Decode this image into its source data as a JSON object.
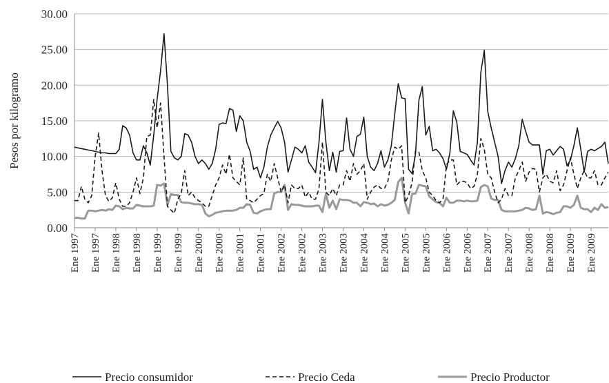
{
  "chart_data": {
    "type": "line",
    "y_label": "Pesos por kilogramo",
    "categories": [
      "Ene 1997",
      null,
      null,
      null,
      null,
      null,
      "Ene 1997",
      null,
      null,
      null,
      null,
      null,
      "Ene 1998",
      null,
      null,
      null,
      null,
      null,
      "Ene 1998",
      null,
      null,
      null,
      null,
      null,
      "Ene 1999",
      null,
      null,
      null,
      null,
      null,
      "Ene 1999",
      null,
      null,
      null,
      null,
      null,
      "Ene 2000",
      null,
      null,
      null,
      null,
      null,
      "Ene 2000",
      null,
      null,
      null,
      null,
      null,
      "Ene 2001",
      null,
      null,
      null,
      null,
      null,
      "Ene 2001",
      null,
      null,
      null,
      null,
      null,
      "Ene 2002",
      null,
      null,
      null,
      null,
      null,
      "Ene 2002",
      null,
      null,
      null,
      null,
      null,
      "Ene 2003",
      null,
      null,
      null,
      null,
      null,
      "Ene 2003",
      null,
      null,
      null,
      null,
      null,
      "Ene 2004",
      null,
      null,
      null,
      null,
      null,
      "Ene 2004",
      null,
      null,
      null,
      null,
      null,
      "Ene 2005",
      null,
      null,
      null,
      null,
      null,
      "Ene 2005",
      null,
      null,
      null,
      null,
      null,
      "Ene 2006",
      null,
      null,
      null,
      null,
      null,
      "Ene 2006",
      null,
      null,
      null,
      null,
      null,
      "Ene 2007",
      null,
      null,
      null,
      null,
      null,
      "Ene 2007",
      null,
      null,
      null,
      null,
      null,
      "Ene 2008",
      null,
      null,
      null,
      null,
      null,
      "Ene 2008",
      null,
      null,
      null,
      null,
      null,
      "Ene 2009",
      null,
      null,
      null,
      null,
      null,
      "Ene 2009",
      null,
      null,
      null,
      null,
      null
    ],
    "series": [
      {
        "name": "Precio consumidor",
        "color": "#1a1a1a",
        "dashed": false,
        "width": 1.6,
        "values": [
          11.3,
          11.2,
          11.1,
          11.0,
          10.9,
          10.8,
          10.7,
          10.6,
          10.5,
          10.5,
          10.4,
          10.4,
          10.4,
          11,
          14.3,
          14,
          13,
          10.5,
          9.5,
          9.5,
          11.5,
          10.5,
          8.8,
          13,
          18,
          22,
          27.2,
          20,
          10.7,
          9.8,
          9.5,
          10,
          13.2,
          13,
          12,
          10,
          9,
          9.5,
          9,
          8.2,
          9,
          11,
          14.5,
          14.7,
          14.6,
          16.7,
          16.5,
          13.5,
          15.7,
          15,
          12,
          10.7,
          8.2,
          8.5,
          7,
          8.5,
          11.3,
          13,
          14,
          14.9,
          14,
          12,
          7.8,
          9.5,
          11.3,
          11,
          10.5,
          11.5,
          9.2,
          8.5,
          7.7,
          12,
          18,
          12,
          8,
          10.6,
          7.8,
          10.7,
          10.8,
          15.4,
          11,
          10,
          12.8,
          13.1,
          15.5,
          10,
          8.5,
          8,
          9,
          10.8,
          8.5,
          9.5,
          11.5,
          16,
          20.2,
          18.2,
          18.1,
          8.2,
          7.6,
          10.3,
          17.9,
          19.8,
          13,
          14.2,
          10.8,
          11,
          10.5,
          9.7,
          8.2,
          10.5,
          16.4,
          14.8,
          10.7,
          10.5,
          10.3,
          9.5,
          8.8,
          12,
          21.8,
          24.9,
          16.3,
          14,
          12,
          10,
          6.2,
          8,
          9.2,
          8.5,
          9.7,
          11.5,
          15.2,
          13.5,
          12,
          11.6,
          11.6,
          11.6,
          7.5,
          10.8,
          11,
          10.2,
          10.8,
          11.4,
          11,
          8.7,
          9.5,
          11.5,
          14,
          11,
          7.8,
          10.7,
          11,
          10.8,
          11.1,
          11.4,
          12,
          9
        ]
      },
      {
        "name": "Precio Ceda",
        "color": "#1a1a1a",
        "dashed": true,
        "width": 1.6,
        "values": [
          3.8,
          3.8,
          5.8,
          4,
          3.5,
          4.5,
          10,
          13.3,
          8,
          4.5,
          3.7,
          4.2,
          6.3,
          4,
          3,
          3,
          3.5,
          5,
          7,
          4.8,
          7,
          12.8,
          13,
          18,
          14,
          17.5,
          10,
          3,
          2.5,
          2,
          4,
          4.8,
          8,
          4.5,
          5,
          4.2,
          3.8,
          3.5,
          3,
          3,
          4.5,
          6,
          7,
          8.8,
          7.5,
          10.3,
          7,
          6.5,
          6,
          9.8,
          4,
          3.8,
          3.5,
          4,
          4.5,
          4.8,
          7.5,
          6.5,
          9,
          7,
          5,
          6,
          3.5,
          6,
          5.5,
          5.5,
          6,
          4.3,
          5,
          4,
          4,
          5.5,
          12,
          5,
          4.5,
          5.5,
          4.5,
          6,
          6,
          8,
          6.5,
          9,
          7.5,
          8,
          9,
          4,
          5,
          5.7,
          6,
          5.5,
          5.5,
          6.5,
          9.5,
          11.3,
          11,
          11.5,
          3.5,
          4.5,
          6.3,
          10.8,
          10.6,
          8,
          7,
          5,
          4.5,
          3.8,
          3.5,
          4,
          8.8,
          9.5,
          9.5,
          6,
          6.5,
          6.5,
          6.3,
          5.5,
          5.8,
          7.5,
          12.5,
          11,
          7.5,
          7,
          5,
          3.5,
          4,
          5.5,
          4.5,
          4.5,
          7,
          8,
          9.2,
          6.5,
          7.8,
          8.3,
          8.2,
          5,
          7,
          7.5,
          6.5,
          6.3,
          8,
          5.2,
          6,
          8,
          9.8,
          7.5,
          5.5,
          7,
          8,
          7,
          7,
          8,
          6,
          6,
          7,
          7.8
        ]
      },
      {
        "name": "Precio Productor",
        "color": "#9a9a9a",
        "dashed": false,
        "width": 3,
        "values": [
          1.4,
          1.4,
          1.3,
          1.3,
          2.4,
          2.4,
          2.3,
          2.4,
          2.5,
          2.4,
          2.6,
          2.5,
          3.1,
          3,
          2.6,
          2.8,
          2.7,
          2.7,
          3.2,
          3.1,
          3,
          3,
          3,
          3.1,
          6,
          5.9,
          6.2,
          3.2,
          4.7,
          4.6,
          4.6,
          3.6,
          3.5,
          3.5,
          3.4,
          3.3,
          3.3,
          3.2,
          2,
          1.6,
          1.8,
          2.1,
          2.2,
          2.3,
          2.4,
          2.4,
          2.4,
          2.5,
          2.8,
          2.8,
          3.3,
          3.2,
          2.1,
          2,
          2.3,
          2.5,
          2.6,
          2.6,
          4.8,
          5,
          5,
          6,
          2.5,
          3.3,
          3.2,
          3.2,
          3.1,
          3,
          3,
          3,
          3.1,
          3.1,
          2.2,
          4.8,
          2.8,
          3.8,
          2.6,
          4,
          3.9,
          3.9,
          3.8,
          3.5,
          3.5,
          3,
          3.6,
          3.5,
          3.3,
          3.4,
          3,
          3.3,
          3.1,
          3.2,
          3.5,
          3.9,
          6.4,
          7,
          3.5,
          2,
          4.7,
          4.8,
          6,
          5.9,
          5.8,
          4.4,
          4,
          3.6,
          3.5,
          3,
          4.2,
          3.5,
          3.5,
          3.8,
          3.8,
          3.7,
          3.8,
          3.7,
          3.7,
          3.8,
          5.7,
          6,
          5.8,
          4.1,
          3.9,
          3.9,
          2.5,
          2.3,
          2.3,
          2.3,
          2.3,
          2.4,
          2.5,
          2.8,
          2.7,
          2.5,
          2.6,
          4.5,
          2,
          2.2,
          2.1,
          1.9,
          2.1,
          2.2,
          3,
          3,
          2.8,
          3.2,
          4.5,
          2.8,
          2.6,
          2.6,
          2.2,
          2.8,
          2.5,
          3.3,
          2.8,
          2.9
        ]
      }
    ],
    "ylim": [
      0,
      30
    ],
    "yticks": [
      {
        "value": 0,
        "label": "0.00"
      },
      {
        "value": 5,
        "label": "5.00"
      },
      {
        "value": 10,
        "label": "10.00"
      },
      {
        "value": 15,
        "label": "15.00"
      },
      {
        "value": 20,
        "label": "20.00"
      },
      {
        "value": 25,
        "label": "25.00"
      },
      {
        "value": 30,
        "label": "30.00"
      }
    ],
    "grid": true,
    "legend": "bottom"
  }
}
